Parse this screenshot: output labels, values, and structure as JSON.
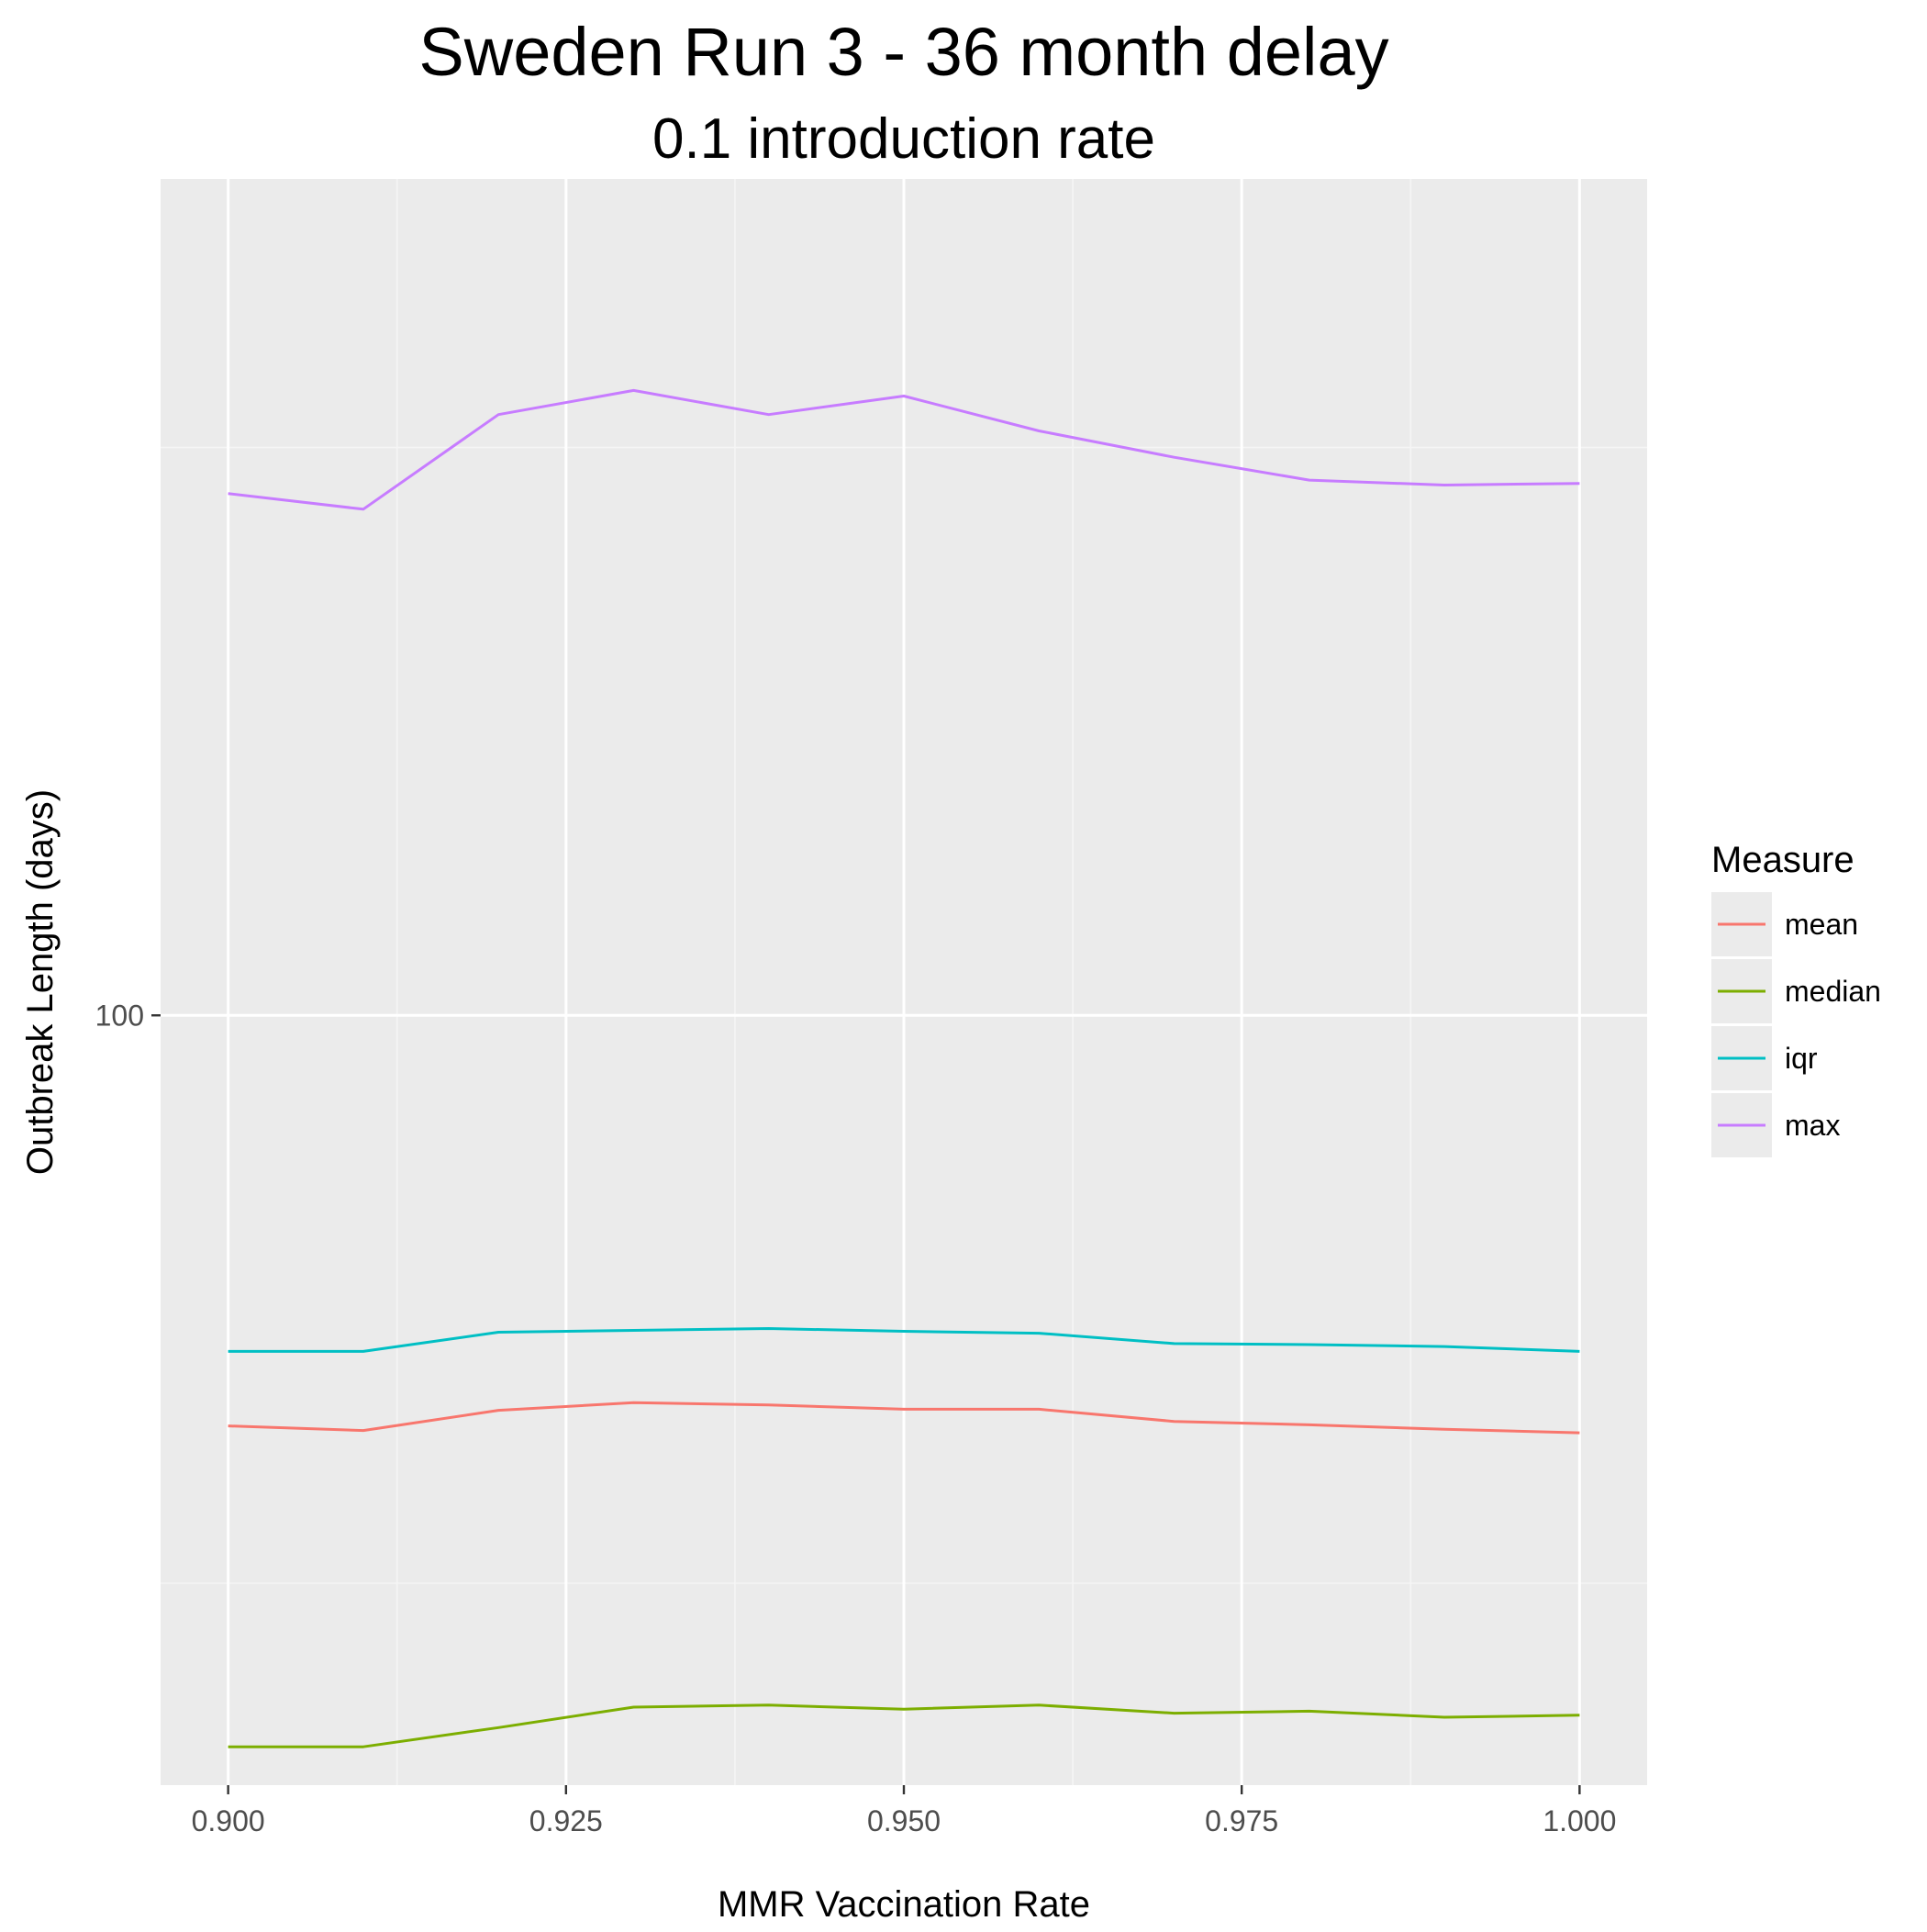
{
  "chart_data": {
    "type": "line",
    "title": "Sweden Run 3 - 36 month delay",
    "subtitle": "0.1 introduction rate",
    "xlabel": "MMR Vaccination Rate",
    "ylabel": "Outbreak Length (days)",
    "x_ticks": [
      "0.900",
      "0.925",
      "0.950",
      "0.975",
      "1.000"
    ],
    "x_tick_values": [
      0.9,
      0.925,
      0.95,
      0.975,
      1.0
    ],
    "y_ticks": [
      "100"
    ],
    "y_tick_values": [
      100
    ],
    "y_scale": "log10",
    "xlim": [
      0.895,
      1.005
    ],
    "ylim": [
      21.0,
      545.0
    ],
    "grid": true,
    "legend": {
      "title": "Measure",
      "position": "right"
    },
    "x": [
      0.9,
      0.91,
      0.92,
      0.93,
      0.94,
      0.95,
      0.96,
      0.97,
      0.98,
      0.99,
      1.0
    ],
    "series": [
      {
        "name": "mean",
        "color": "#F8766D",
        "values": [
          43.5,
          43.1,
          44.9,
          45.6,
          45.4,
          45.0,
          45.0,
          43.9,
          43.6,
          43.2,
          42.9
        ]
      },
      {
        "name": "median",
        "color": "#7CAE00",
        "values": [
          22.7,
          22.7,
          23.6,
          24.6,
          24.7,
          24.5,
          24.7,
          24.3,
          24.4,
          24.1,
          24.2
        ]
      },
      {
        "name": "iqr",
        "color": "#00BFC4",
        "values": [
          50.6,
          50.6,
          52.6,
          52.8,
          53.0,
          52.7,
          52.5,
          51.4,
          51.3,
          51.1,
          50.6
        ]
      },
      {
        "name": "max",
        "color": "#C77CFF",
        "values": [
          288,
          279,
          338,
          355,
          338,
          351,
          327,
          310,
          296,
          293,
          294
        ]
      }
    ]
  },
  "colors": {
    "panel_background": "#EBEBEB",
    "grid_major": "#FFFFFF",
    "grid_minor": "#F5F5F5",
    "tick": "#333333"
  }
}
